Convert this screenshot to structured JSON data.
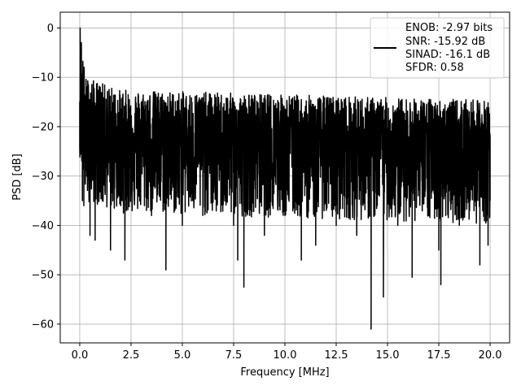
{
  "chart_data": {
    "type": "line",
    "title": "",
    "xlabel": "Frequency [MHz]",
    "ylabel": "PSD [dB]",
    "xlim": [
      -0.95,
      20.95
    ],
    "ylim": [
      -63.8,
      3.2
    ],
    "xticks": [
      0.0,
      2.5,
      5.0,
      7.5,
      10.0,
      12.5,
      15.0,
      17.5,
      20.0
    ],
    "xtick_labels": [
      "0.0",
      "2.5",
      "5.0",
      "7.5",
      "10.0",
      "12.5",
      "15.0",
      "17.5",
      "20.0"
    ],
    "yticks": [
      0,
      -10,
      -20,
      -30,
      -40,
      -50,
      -60
    ],
    "ytick_labels": [
      "0",
      "−10",
      "−20",
      "−30",
      "−40",
      "−50",
      "−60"
    ],
    "grid": true,
    "legend": {
      "placement": "top-right",
      "lines": [
        "ENOB: -2.97 bits",
        "SNR: -15.92 dB",
        "SINAD: -16.1 dB",
        "SFDR: 0.58"
      ]
    },
    "series": [
      {
        "color": "#000000",
        "x": [
          0.0,
          0.02,
          0.04,
          0.06,
          0.08,
          0.1,
          0.13,
          0.16,
          0.2,
          0.25,
          0.3,
          0.4,
          0.5,
          0.6,
          0.75,
          0.9,
          1.0,
          1.1,
          1.2,
          1.5,
          1.8,
          2.0,
          2.2,
          2.3,
          2.5,
          3.0,
          3.5,
          4.0,
          4.2,
          4.5,
          5.0,
          5.5,
          6.0,
          6.5,
          7.0,
          7.5,
          7.7,
          7.9,
          8.0,
          8.5,
          9.0,
          9.5,
          10.0,
          10.5,
          10.8,
          11.0,
          11.5,
          12.0,
          12.5,
          13.0,
          13.5,
          14.0,
          14.2,
          14.5,
          14.8,
          15.0,
          15.5,
          16.0,
          16.2,
          16.5,
          17.0,
          17.5,
          17.6,
          18.0,
          18.5,
          19.0,
          19.5,
          19.9,
          20.0
        ],
        "y": [
          -24.0,
          0.0,
          -5.0,
          -12.0,
          -3.0,
          -15.0,
          -35.0,
          -10.0,
          -36.0,
          -14.0,
          -28.0,
          -18.0,
          -42.0,
          -22.0,
          -43.0,
          -26.0,
          -12.0,
          -35.0,
          -28.0,
          -45.0,
          -20.0,
          -36.0,
          -47.0,
          -24.0,
          -30.0,
          -15.0,
          -38.0,
          -22.0,
          -49.0,
          -30.0,
          -40.0,
          -25.0,
          -38.0,
          -30.0,
          -35.0,
          -40.0,
          -47.0,
          -33.0,
          -52.5,
          -28.0,
          -42.0,
          -30.0,
          -38.0,
          -26.0,
          -47.0,
          -32.0,
          -44.0,
          -28.0,
          -40.0,
          -32.0,
          -42.0,
          -30.0,
          -61.0,
          -36.0,
          -54.5,
          -28.0,
          -40.0,
          -30.0,
          -50.5,
          -34.0,
          -38.0,
          -45.0,
          -52.0,
          -33.0,
          -40.0,
          -37.0,
          -48.0,
          -44.0,
          -22.0
        ]
      }
    ]
  }
}
